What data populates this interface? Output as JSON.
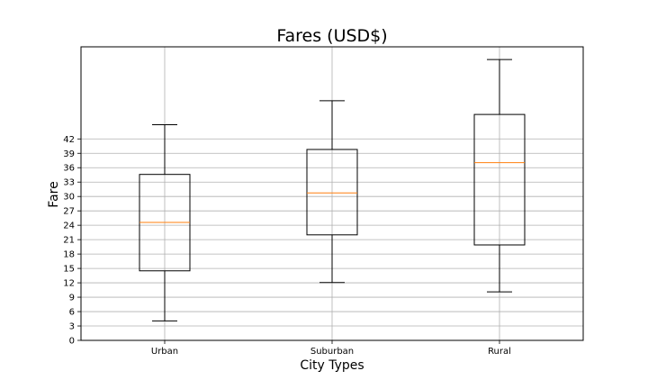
{
  "chart_data": {
    "type": "box",
    "title": "Fares (USD$)",
    "xlabel": "City Types",
    "ylabel": "Fare",
    "categories": [
      "Urban",
      "Suburban",
      "Rural"
    ],
    "boxes": [
      {
        "name": "Urban",
        "whisker_low": 4.05,
        "q1": 14.5,
        "median": 24.6,
        "q3": 34.6,
        "whisker_high": 44.97
      },
      {
        "name": "Suburban",
        "whisker_low": 12.05,
        "q1": 22.0,
        "median": 30.75,
        "q3": 39.8,
        "whisker_high": 49.96
      },
      {
        "name": "Rural",
        "whisker_low": 10.11,
        "q1": 19.9,
        "median": 37.05,
        "q3": 47.1,
        "whisker_high": 58.55
      }
    ],
    "yticks": [
      0,
      3,
      6,
      9,
      12,
      15,
      18,
      21,
      24,
      27,
      30,
      33,
      36,
      39,
      42
    ],
    "ylim": [
      0,
      61.2
    ],
    "grid": true,
    "colors": {
      "box": "#000000",
      "median": "#ff7f0e",
      "grid": "#b0b0b0",
      "frame": "#000000"
    }
  }
}
